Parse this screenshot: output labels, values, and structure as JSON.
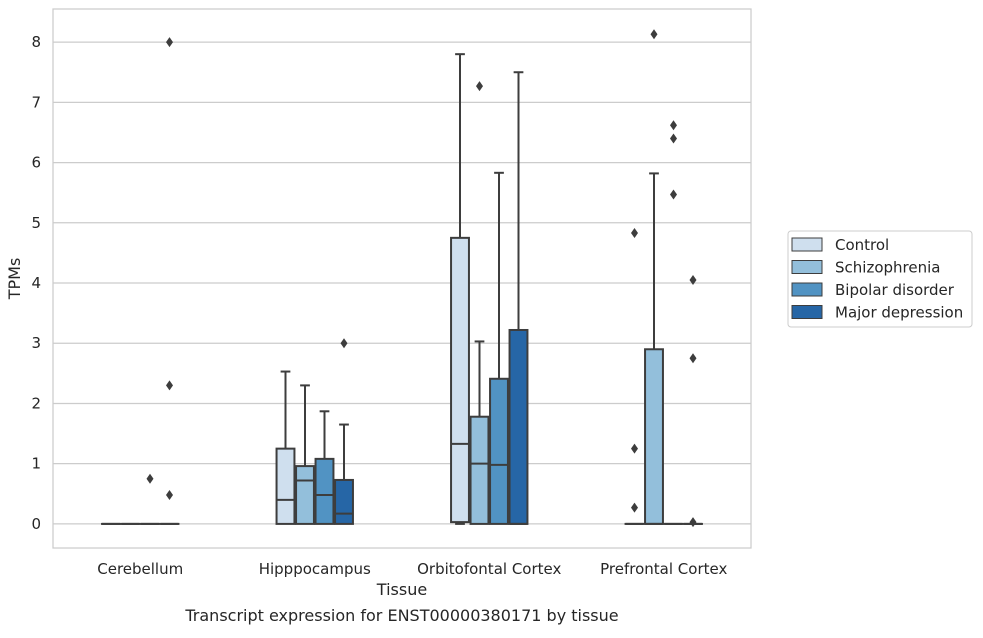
{
  "chart_data": {
    "type": "box",
    "title": "",
    "caption": "Transcript expression for ENST00000380171 by tissue",
    "xlabel": "Tissue",
    "ylabel": "TPMs",
    "ylim": [
      -0.4,
      8.55
    ],
    "yticks": [
      0,
      1,
      2,
      3,
      4,
      5,
      6,
      7,
      8
    ],
    "grid": "horizontal",
    "legend_position": "center-right",
    "categories": [
      "Cerebellum",
      "Hipppocampus",
      "Orbitofontal Cortex",
      "Prefrontal Cortex"
    ],
    "series": [
      {
        "name": "Control",
        "color": "#cfdfee",
        "boxes": [
          {
            "q1": 0,
            "median": 0,
            "q3": 0,
            "whisker_low": 0,
            "whisker_high": 0,
            "outliers": []
          },
          {
            "q1": 0,
            "median": 0.4,
            "q3": 1.25,
            "whisker_low": 0,
            "whisker_high": 2.53,
            "outliers": []
          },
          {
            "q1": 0.03,
            "median": 1.33,
            "q3": 4.75,
            "whisker_low": 0,
            "whisker_high": 7.8,
            "outliers": []
          },
          {
            "q1": 0,
            "median": 0,
            "q3": 0,
            "whisker_low": 0,
            "whisker_high": 0,
            "outliers": [
              4.83,
              1.25,
              0.27
            ]
          }
        ]
      },
      {
        "name": "Schizophrenia",
        "color": "#93bfdb",
        "boxes": [
          {
            "q1": 0,
            "median": 0,
            "q3": 0,
            "whisker_low": 0,
            "whisker_high": 0,
            "outliers": []
          },
          {
            "q1": 0,
            "median": 0.72,
            "q3": 0.96,
            "whisker_low": 0,
            "whisker_high": 2.3,
            "outliers": []
          },
          {
            "q1": 0,
            "median": 1.0,
            "q3": 1.78,
            "whisker_low": 0,
            "whisker_high": 3.03,
            "outliers": [
              7.27
            ]
          },
          {
            "q1": 0,
            "median": 0,
            "q3": 2.9,
            "whisker_low": 0,
            "whisker_high": 5.82,
            "outliers": [
              8.13
            ]
          }
        ]
      },
      {
        "name": "Bipolar disorder",
        "color": "#5193c3",
        "boxes": [
          {
            "q1": 0,
            "median": 0,
            "q3": 0,
            "whisker_low": 0,
            "whisker_high": 0,
            "outliers": [
              0.75
            ]
          },
          {
            "q1": 0,
            "median": 0.48,
            "q3": 1.08,
            "whisker_low": 0,
            "whisker_high": 1.87,
            "outliers": []
          },
          {
            "q1": 0,
            "median": 0.98,
            "q3": 2.41,
            "whisker_low": 0,
            "whisker_high": 5.83,
            "outliers": []
          },
          {
            "q1": 0,
            "median": 0,
            "q3": 0,
            "whisker_low": 0,
            "whisker_high": 0,
            "outliers": [
              6.62,
              6.4,
              5.47
            ]
          }
        ]
      },
      {
        "name": "Major depression",
        "color": "#2666a6",
        "boxes": [
          {
            "q1": 0,
            "median": 0,
            "q3": 0,
            "whisker_low": 0,
            "whisker_high": 0,
            "outliers": [
              8.0,
              2.3,
              0.48
            ]
          },
          {
            "q1": 0,
            "median": 0.17,
            "q3": 0.73,
            "whisker_low": 0,
            "whisker_high": 1.65,
            "outliers": [
              3.0
            ]
          },
          {
            "q1": 0,
            "median": 0,
            "q3": 3.22,
            "whisker_low": 0,
            "whisker_high": 7.5,
            "outliers": []
          },
          {
            "q1": 0,
            "median": 0,
            "q3": 0,
            "whisker_low": 0,
            "whisker_high": 0,
            "outliers": [
              4.05,
              2.75,
              0.03
            ]
          }
        ]
      }
    ]
  }
}
